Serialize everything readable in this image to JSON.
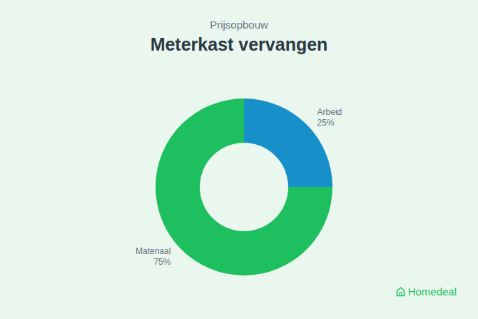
{
  "chart_data": {
    "type": "pie",
    "subtitle": "Prijsopbouw",
    "title": "Meterkast vervangen",
    "categories": [
      "Arbeid",
      "Materiaal"
    ],
    "values": [
      25,
      75
    ],
    "value_labels": [
      "25%",
      "75%"
    ],
    "colors": [
      "#1790c9",
      "#1dbf5e"
    ],
    "data_labels": true,
    "source": "Homedeal"
  }
}
